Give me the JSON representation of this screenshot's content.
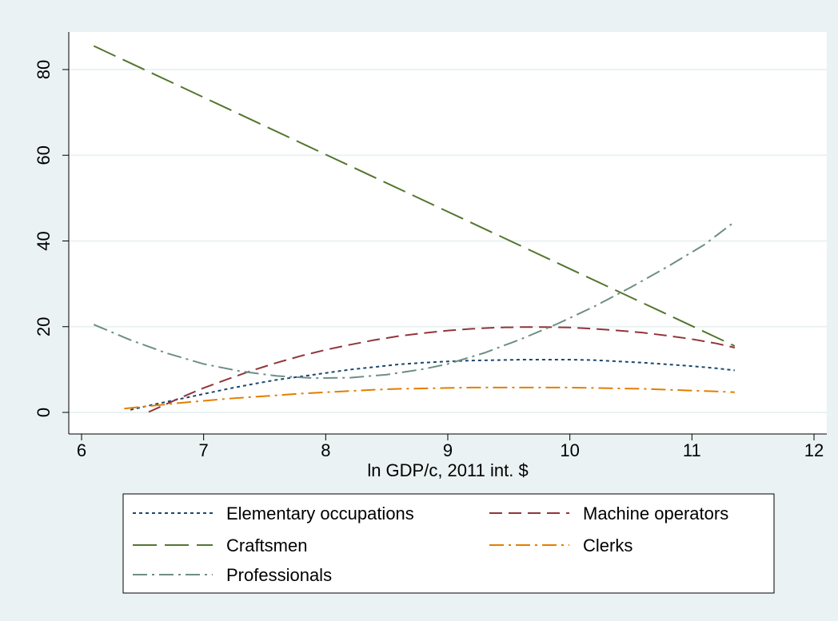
{
  "chart_data": {
    "type": "line",
    "title": "",
    "xlabel": "ln GDP/c, 2011 int. $",
    "ylabel": "",
    "xlim": [
      6,
      12
    ],
    "ylim": [
      0,
      85
    ],
    "x_ticks": [
      6,
      7,
      8,
      9,
      10,
      11,
      12
    ],
    "y_ticks": [
      0,
      20,
      40,
      60,
      80
    ],
    "grid": "horizontal",
    "legend_position": "bottom",
    "series": [
      {
        "name": "Elementary occupations",
        "color": "#1a476f",
        "style": "dot",
        "x": [
          6.4,
          6.6,
          6.8,
          7.0,
          7.2,
          7.4,
          7.6,
          7.8,
          8.0,
          8.2,
          8.4,
          8.6,
          8.8,
          9.0,
          9.2,
          9.4,
          9.6,
          9.8,
          10.0,
          10.2,
          10.4,
          10.6,
          10.8,
          11.0,
          11.2,
          11.35
        ],
        "values": [
          0.6,
          1.9,
          3.1,
          4.3,
          5.5,
          6.6,
          7.6,
          8.4,
          9.2,
          10.0,
          10.6,
          11.2,
          11.6,
          11.9,
          12.1,
          12.2,
          12.3,
          12.3,
          12.3,
          12.2,
          11.9,
          11.6,
          11.2,
          10.8,
          10.3,
          9.8
        ]
      },
      {
        "name": "Machine operators",
        "color": "#90353b",
        "style": "dash",
        "x": [
          6.55,
          6.8,
          7.0,
          7.2,
          7.4,
          7.6,
          7.8,
          8.0,
          8.2,
          8.4,
          8.6,
          8.8,
          9.0,
          9.2,
          9.4,
          9.6,
          9.8,
          10.0,
          10.2,
          10.4,
          10.6,
          10.8,
          11.0,
          11.2,
          11.35
        ],
        "values": [
          0.1,
          3.3,
          5.7,
          7.8,
          9.8,
          11.6,
          13.2,
          14.6,
          15.8,
          16.9,
          17.8,
          18.5,
          19.1,
          19.5,
          19.8,
          19.9,
          19.9,
          19.8,
          19.5,
          19.1,
          18.6,
          17.9,
          17.1,
          16.1,
          15.1
        ]
      },
      {
        "name": "Craftsmen",
        "color": "#55752f",
        "style": "longdash",
        "x": [
          6.1,
          11.35
        ],
        "values": [
          85.5,
          15.5
        ]
      },
      {
        "name": "Clerks",
        "color": "#e37e00",
        "style": "dashdot",
        "x": [
          6.35,
          6.6,
          6.8,
          7.0,
          7.2,
          7.4,
          7.6,
          7.8,
          8.0,
          8.2,
          8.4,
          8.6,
          8.8,
          9.0,
          9.2,
          9.4,
          9.6,
          9.8,
          10.0,
          10.2,
          10.4,
          10.6,
          10.8,
          11.0,
          11.2,
          11.35
        ],
        "values": [
          0.9,
          1.6,
          2.2,
          2.7,
          3.2,
          3.6,
          4.0,
          4.4,
          4.7,
          5.0,
          5.3,
          5.5,
          5.6,
          5.7,
          5.8,
          5.8,
          5.8,
          5.8,
          5.8,
          5.7,
          5.6,
          5.5,
          5.3,
          5.1,
          4.9,
          4.7
        ]
      },
      {
        "name": "Professionals",
        "color": "#6e8e84",
        "style": "dashdot",
        "x": [
          6.1,
          6.4,
          6.7,
          7.0,
          7.3,
          7.6,
          7.9,
          8.2,
          8.5,
          8.8,
          9.0,
          9.3,
          9.6,
          9.9,
          10.2,
          10.5,
          10.8,
          11.1,
          11.35
        ],
        "values": [
          20.5,
          16.9,
          13.8,
          11.3,
          9.6,
          8.5,
          8.0,
          8.1,
          8.8,
          10.1,
          11.3,
          13.9,
          17.1,
          20.7,
          24.7,
          29.2,
          34.0,
          39.1,
          44.5
        ]
      }
    ]
  }
}
